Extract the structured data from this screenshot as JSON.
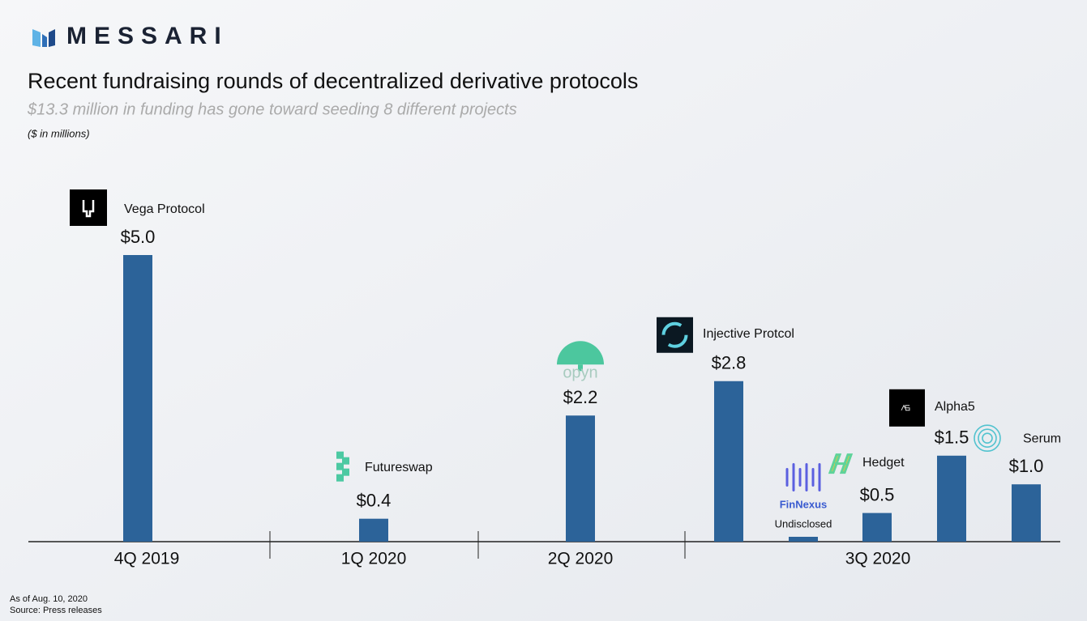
{
  "header": {
    "brand": "MESSARI"
  },
  "chart_data": {
    "type": "bar",
    "title": "Recent fundraising rounds of decentralized derivative protocols",
    "subtitle": "$13.3 million in funding has gone toward seeding 8 different projects",
    "unit_note": "($ in millions)",
    "color": "#2c6399",
    "ylim": [
      0,
      5
    ],
    "groups": [
      {
        "label": "4Q 2019",
        "categories": [
          "Vega Protocol"
        ],
        "values": [
          5.0
        ],
        "value_labels": [
          "$5.0"
        ]
      },
      {
        "label": "1Q 2020",
        "categories": [
          "Futureswap"
        ],
        "values": [
          0.4
        ],
        "value_labels": [
          "$0.4"
        ]
      },
      {
        "label": "2Q 2020",
        "categories": [
          "opyn"
        ],
        "values": [
          2.2
        ],
        "value_labels": [
          "$2.2"
        ]
      },
      {
        "label": "3Q 2020",
        "categories": [
          "Injective Protcol",
          "FinNexus",
          "Hedget",
          "Alpha5",
          "Serum"
        ],
        "values": [
          2.8,
          null,
          0.5,
          1.5,
          1.0
        ],
        "value_labels": [
          "$2.8",
          "Undisclosed",
          "$0.5",
          "$1.5",
          "$1.0"
        ]
      }
    ],
    "notes": [
      "As of Aug. 10, 2020",
      "Source: Press releases"
    ]
  }
}
